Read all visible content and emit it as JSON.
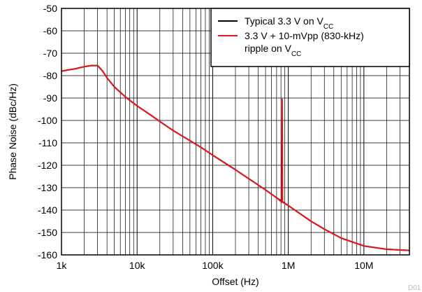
{
  "chart_data": {
    "type": "line",
    "xlabel": "Offset (Hz)",
    "ylabel": "Phase Noise (dBc/Hz)",
    "x_scale": "log",
    "xlim": [
      1000,
      40000000
    ],
    "ylim": [
      -160,
      -50
    ],
    "grid": true,
    "legend_position": "top-right",
    "x_ticks": [
      1000,
      10000,
      100000,
      1000000,
      10000000
    ],
    "x_tick_labels": [
      "1k",
      "10k",
      "100k",
      "1M",
      "10M"
    ],
    "y_ticks": [
      -50,
      -60,
      -70,
      -80,
      -90,
      -100,
      -110,
      -120,
      -130,
      -140,
      -150,
      -160
    ],
    "y_tick_labels": [
      "-50",
      "-60",
      "-70",
      "-80",
      "-90",
      "-100",
      "-110",
      "-120",
      "-130",
      "-140",
      "-150",
      "-160"
    ],
    "series": [
      {
        "name_main": "Typical 3.3 V on V",
        "name_sub": "CC",
        "color": "#000000",
        "x": [
          1000,
          1200,
          1500,
          2000,
          2500,
          3000,
          3500,
          4000,
          5000,
          7000,
          10000,
          15000,
          20000,
          30000,
          50000,
          70000,
          100000,
          200000,
          300000,
          500000,
          700000,
          1000000,
          2000000,
          3000000,
          5000000,
          10000000,
          20000000,
          40000000
        ],
        "y": [
          -78,
          -77.5,
          -77,
          -76,
          -75.5,
          -75.5,
          -78,
          -81,
          -85,
          -89.5,
          -93.5,
          -97.5,
          -100.5,
          -104.5,
          -109,
          -112,
          -115.5,
          -122,
          -126,
          -131,
          -134.5,
          -138,
          -145,
          -148.5,
          -152.5,
          -156,
          -157.5,
          -158
        ]
      },
      {
        "name_line1": "3.3 V + 10-mVpp (830-kHz)",
        "name_line2_main": "ripple on V",
        "name_line2_sub": "CC",
        "color": "#e8141c",
        "x": [
          1000,
          1200,
          1500,
          2000,
          2500,
          3000,
          3500,
          4000,
          5000,
          7000,
          10000,
          15000,
          20000,
          30000,
          50000,
          70000,
          100000,
          200000,
          300000,
          500000,
          700000,
          820000,
          830000,
          840000,
          1000000,
          2000000,
          3000000,
          5000000,
          10000000,
          20000000,
          40000000
        ],
        "y": [
          -78,
          -77.5,
          -77,
          -76,
          -75.5,
          -75.5,
          -78,
          -81,
          -85,
          -89.5,
          -93.5,
          -97.5,
          -100.5,
          -104.5,
          -109,
          -112,
          -115.5,
          -122,
          -126,
          -131,
          -134.5,
          -136.5,
          -90.5,
          -136.5,
          -138,
          -145,
          -148.5,
          -152.5,
          -156,
          -157.5,
          -158
        ]
      }
    ],
    "watermark": "D01"
  }
}
